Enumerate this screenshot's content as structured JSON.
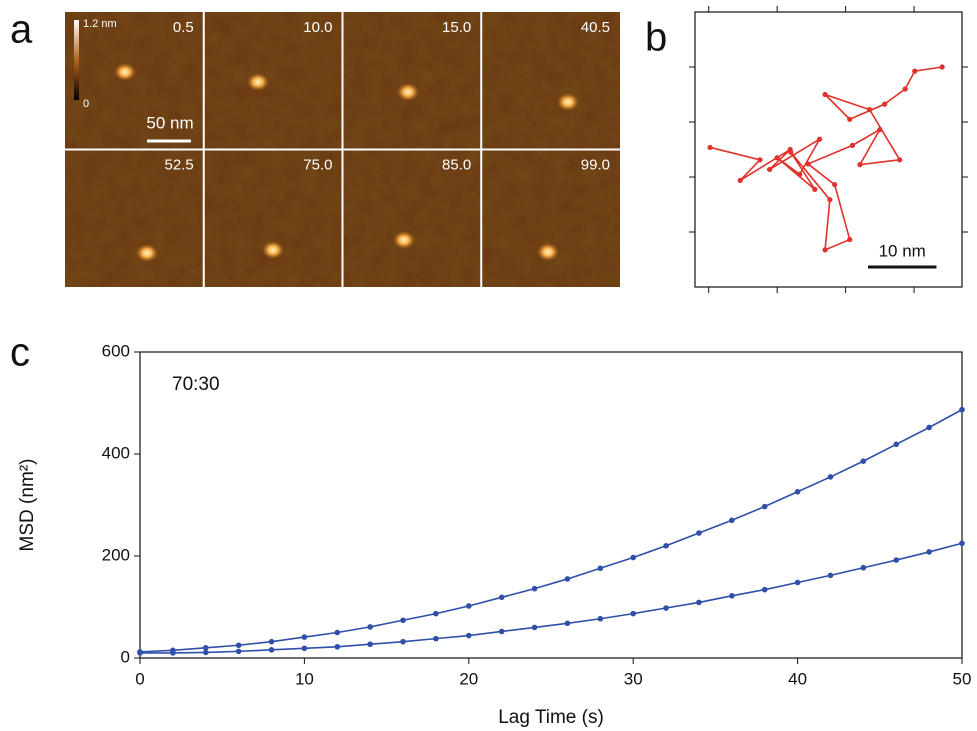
{
  "panel_labels": [
    "a",
    "b",
    "c"
  ],
  "chart_data": [
    {
      "type": "image_grid",
      "labels": [
        "0.5",
        "10.0",
        "15.0",
        "40.5",
        "52.5",
        "75.0",
        "85.0",
        "99.0"
      ],
      "colorbar": {
        "max_label": "1.2 nm",
        "min_label": "0"
      },
      "scalebar": {
        "length": 50,
        "label": "50 nm"
      }
    },
    {
      "type": "line",
      "x": [
        2.2,
        9.5,
        6.6,
        13.9,
        10.9,
        18.2,
        15.3,
        12.0,
        17.5,
        14.0,
        19.7,
        19.0,
        22.6,
        20.4,
        16.5,
        23.0,
        27.0,
        24.1,
        29.9,
        25.5,
        19.0,
        22.6,
        27.7,
        30.7,
        32.1,
        36.1
      ],
      "series": [
        {
          "color": "#e0312b",
          "values": [
            20.3,
            18.5,
            15.5,
            20.0,
            17.1,
            21.5,
            16.4,
            18.8,
            14.2,
            19.6,
            12.7,
            5.4,
            6.9,
            14.9,
            17.9,
            20.6,
            22.9,
            17.8,
            18.5,
            25.8,
            28.0,
            24.4,
            26.6,
            28.8,
            31.4,
            32.0
          ]
        }
      ],
      "xlim": [
        0,
        39
      ],
      "ylim": [
        0,
        40
      ],
      "xticks": [
        2,
        12,
        22,
        32
      ],
      "yticks": [
        8,
        16,
        24,
        32
      ],
      "scalebar": {
        "length": 10,
        "label": "10 nm"
      }
    },
    {
      "type": "line",
      "annotation": "70:30",
      "xlabel": "Lag Time (s)",
      "ylabel": "MSD (nm²)",
      "x": [
        0,
        2,
        4,
        6,
        8,
        10,
        12,
        14,
        16,
        18,
        20,
        22,
        24,
        26,
        28,
        30,
        32,
        34,
        36,
        38,
        40,
        42,
        44,
        46,
        48,
        50
      ],
      "series": [
        {
          "color": "#2f4fa8",
          "values": [
            12,
            15,
            20,
            25,
            32,
            41,
            50,
            61,
            74,
            87,
            102,
            119,
            136,
            155,
            176,
            197,
            220,
            245,
            270,
            297,
            326,
            355,
            386,
            419,
            452,
            487
          ]
        },
        {
          "color": "#2f4fa8",
          "values": [
            10,
            10,
            11,
            13,
            16,
            19,
            22,
            27,
            32,
            38,
            44,
            52,
            60,
            68,
            77,
            87,
            98,
            109,
            122,
            134,
            148,
            162,
            177,
            192,
            208,
            225
          ]
        }
      ],
      "xlim": [
        0,
        50
      ],
      "ylim": [
        0,
        600
      ],
      "xticks": [
        0,
        10,
        20,
        30,
        40,
        50
      ],
      "yticks": [
        0,
        200,
        400,
        600
      ]
    }
  ]
}
